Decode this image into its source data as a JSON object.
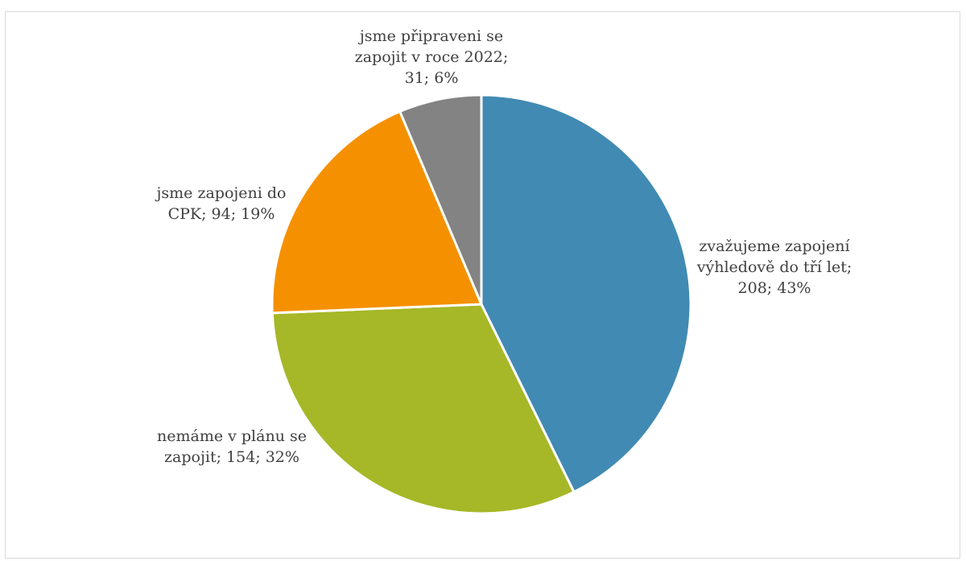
{
  "chart_data": {
    "type": "pie",
    "title": "",
    "slices": [
      {
        "label_lines": [
          "zvažujeme zapojení",
          "výhledově do tří let;",
          "208; 43%"
        ],
        "value": 208,
        "percent": 43,
        "color": "#418ab3"
      },
      {
        "label_lines": [
          "nemáme v plánu se",
          "zapojit; 154; 32%"
        ],
        "value": 154,
        "percent": 32,
        "color": "#a6b727"
      },
      {
        "label_lines": [
          "jsme zapojeni do",
          "CPK; 94; 19%"
        ],
        "value": 94,
        "percent": 19,
        "color": "#f59100"
      },
      {
        "label_lines": [
          "jsme připraveni se",
          "zapojit v roce 2022;",
          "31; 6%"
        ],
        "value": 31,
        "percent": 6,
        "color": "#838383"
      }
    ]
  }
}
